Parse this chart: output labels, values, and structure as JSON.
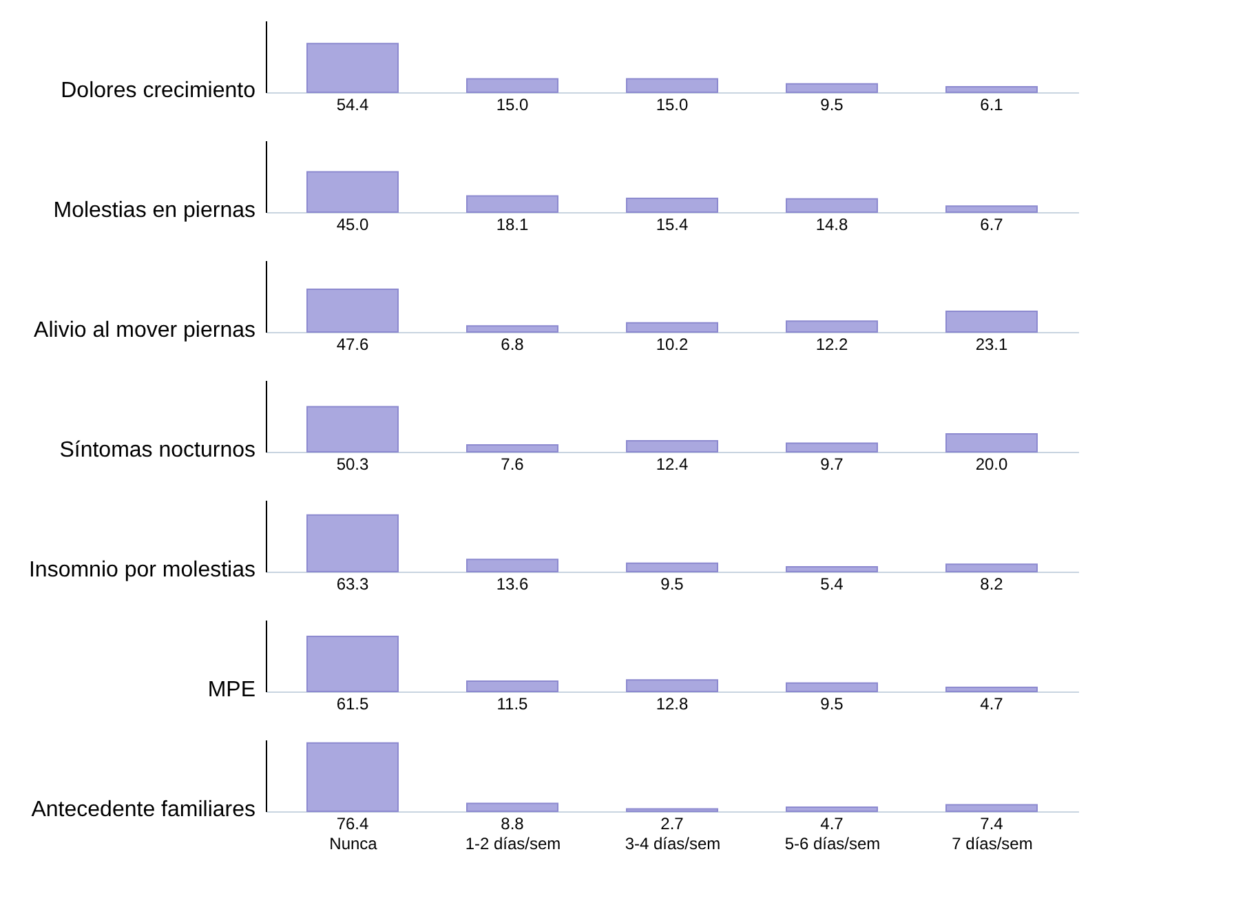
{
  "chart_data": [
    {
      "type": "bar",
      "title": "Dolores crecimiento",
      "categories": [
        null,
        null,
        null,
        null,
        null
      ],
      "values": [
        54.4,
        15.0,
        15.0,
        9.5,
        6.1
      ],
      "value_labels": [
        "54.4",
        "15.0",
        "15.0",
        "9.5",
        "6.1"
      ],
      "color": "#aaa8df",
      "ylim": [
        0,
        80
      ],
      "tick_labels": false
    },
    {
      "type": "bar",
      "title": "Molestias en piernas",
      "categories": [
        null,
        null,
        null,
        null,
        null
      ],
      "values": [
        45.0,
        18.1,
        15.4,
        14.8,
        6.7
      ],
      "value_labels": [
        "45.0",
        "18.1",
        "15.4",
        "14.8",
        "6.7"
      ],
      "color": "#aaa8df",
      "ylim": [
        0,
        80
      ],
      "tick_labels": false
    },
    {
      "type": "bar",
      "title": "Alivio al mover piernas",
      "categories": [
        null,
        null,
        null,
        null,
        null
      ],
      "values": [
        47.6,
        6.8,
        10.2,
        12.2,
        23.1
      ],
      "value_labels": [
        "47.6",
        "6.8",
        "10.2",
        "12.2",
        "23.1"
      ],
      "color": "#aaa8df",
      "ylim": [
        0,
        80
      ],
      "tick_labels": false
    },
    {
      "type": "bar",
      "title": "Síntomas nocturnos",
      "categories": [
        null,
        null,
        null,
        null,
        null
      ],
      "values": [
        50.3,
        7.6,
        12.4,
        9.7,
        20.0
      ],
      "value_labels": [
        "50.3",
        "7.6",
        "12.4",
        "9.7",
        "20.0"
      ],
      "color": "#aaa8df",
      "ylim": [
        0,
        80
      ],
      "tick_labels": false
    },
    {
      "type": "bar",
      "title": "Insomnio por molestias",
      "categories": [
        null,
        null,
        null,
        null,
        null
      ],
      "values": [
        63.3,
        13.6,
        9.5,
        5.4,
        8.2
      ],
      "value_labels": [
        "63.3",
        "13.6",
        "9.5",
        "5.4",
        "8.2"
      ],
      "color": "#aaa8df",
      "ylim": [
        0,
        80
      ],
      "tick_labels": false
    },
    {
      "type": "bar",
      "title": "MPE",
      "categories": [
        null,
        null,
        null,
        null,
        null
      ],
      "values": [
        61.5,
        11.5,
        12.8,
        9.5,
        4.7
      ],
      "value_labels": [
        "61.5",
        "11.5",
        "12.8",
        "9.5",
        "4.7"
      ],
      "color": "#aaa8df",
      "ylim": [
        0,
        80
      ],
      "tick_labels": false
    },
    {
      "type": "bar",
      "title": "Antecedente familiares",
      "categories": [
        "Nunca",
        "1-2 días/sem",
        "3-4 días/sem",
        "5-6 días/sem",
        "7 días/sem"
      ],
      "values": [
        76.4,
        8.8,
        2.7,
        4.7,
        7.4
      ],
      "value_labels": [
        "76.4",
        "8.8",
        "2.7",
        "4.7",
        "7.4"
      ],
      "color": "#aaa8df",
      "ylim": [
        0,
        80
      ],
      "tick_labels": "x"
    }
  ]
}
